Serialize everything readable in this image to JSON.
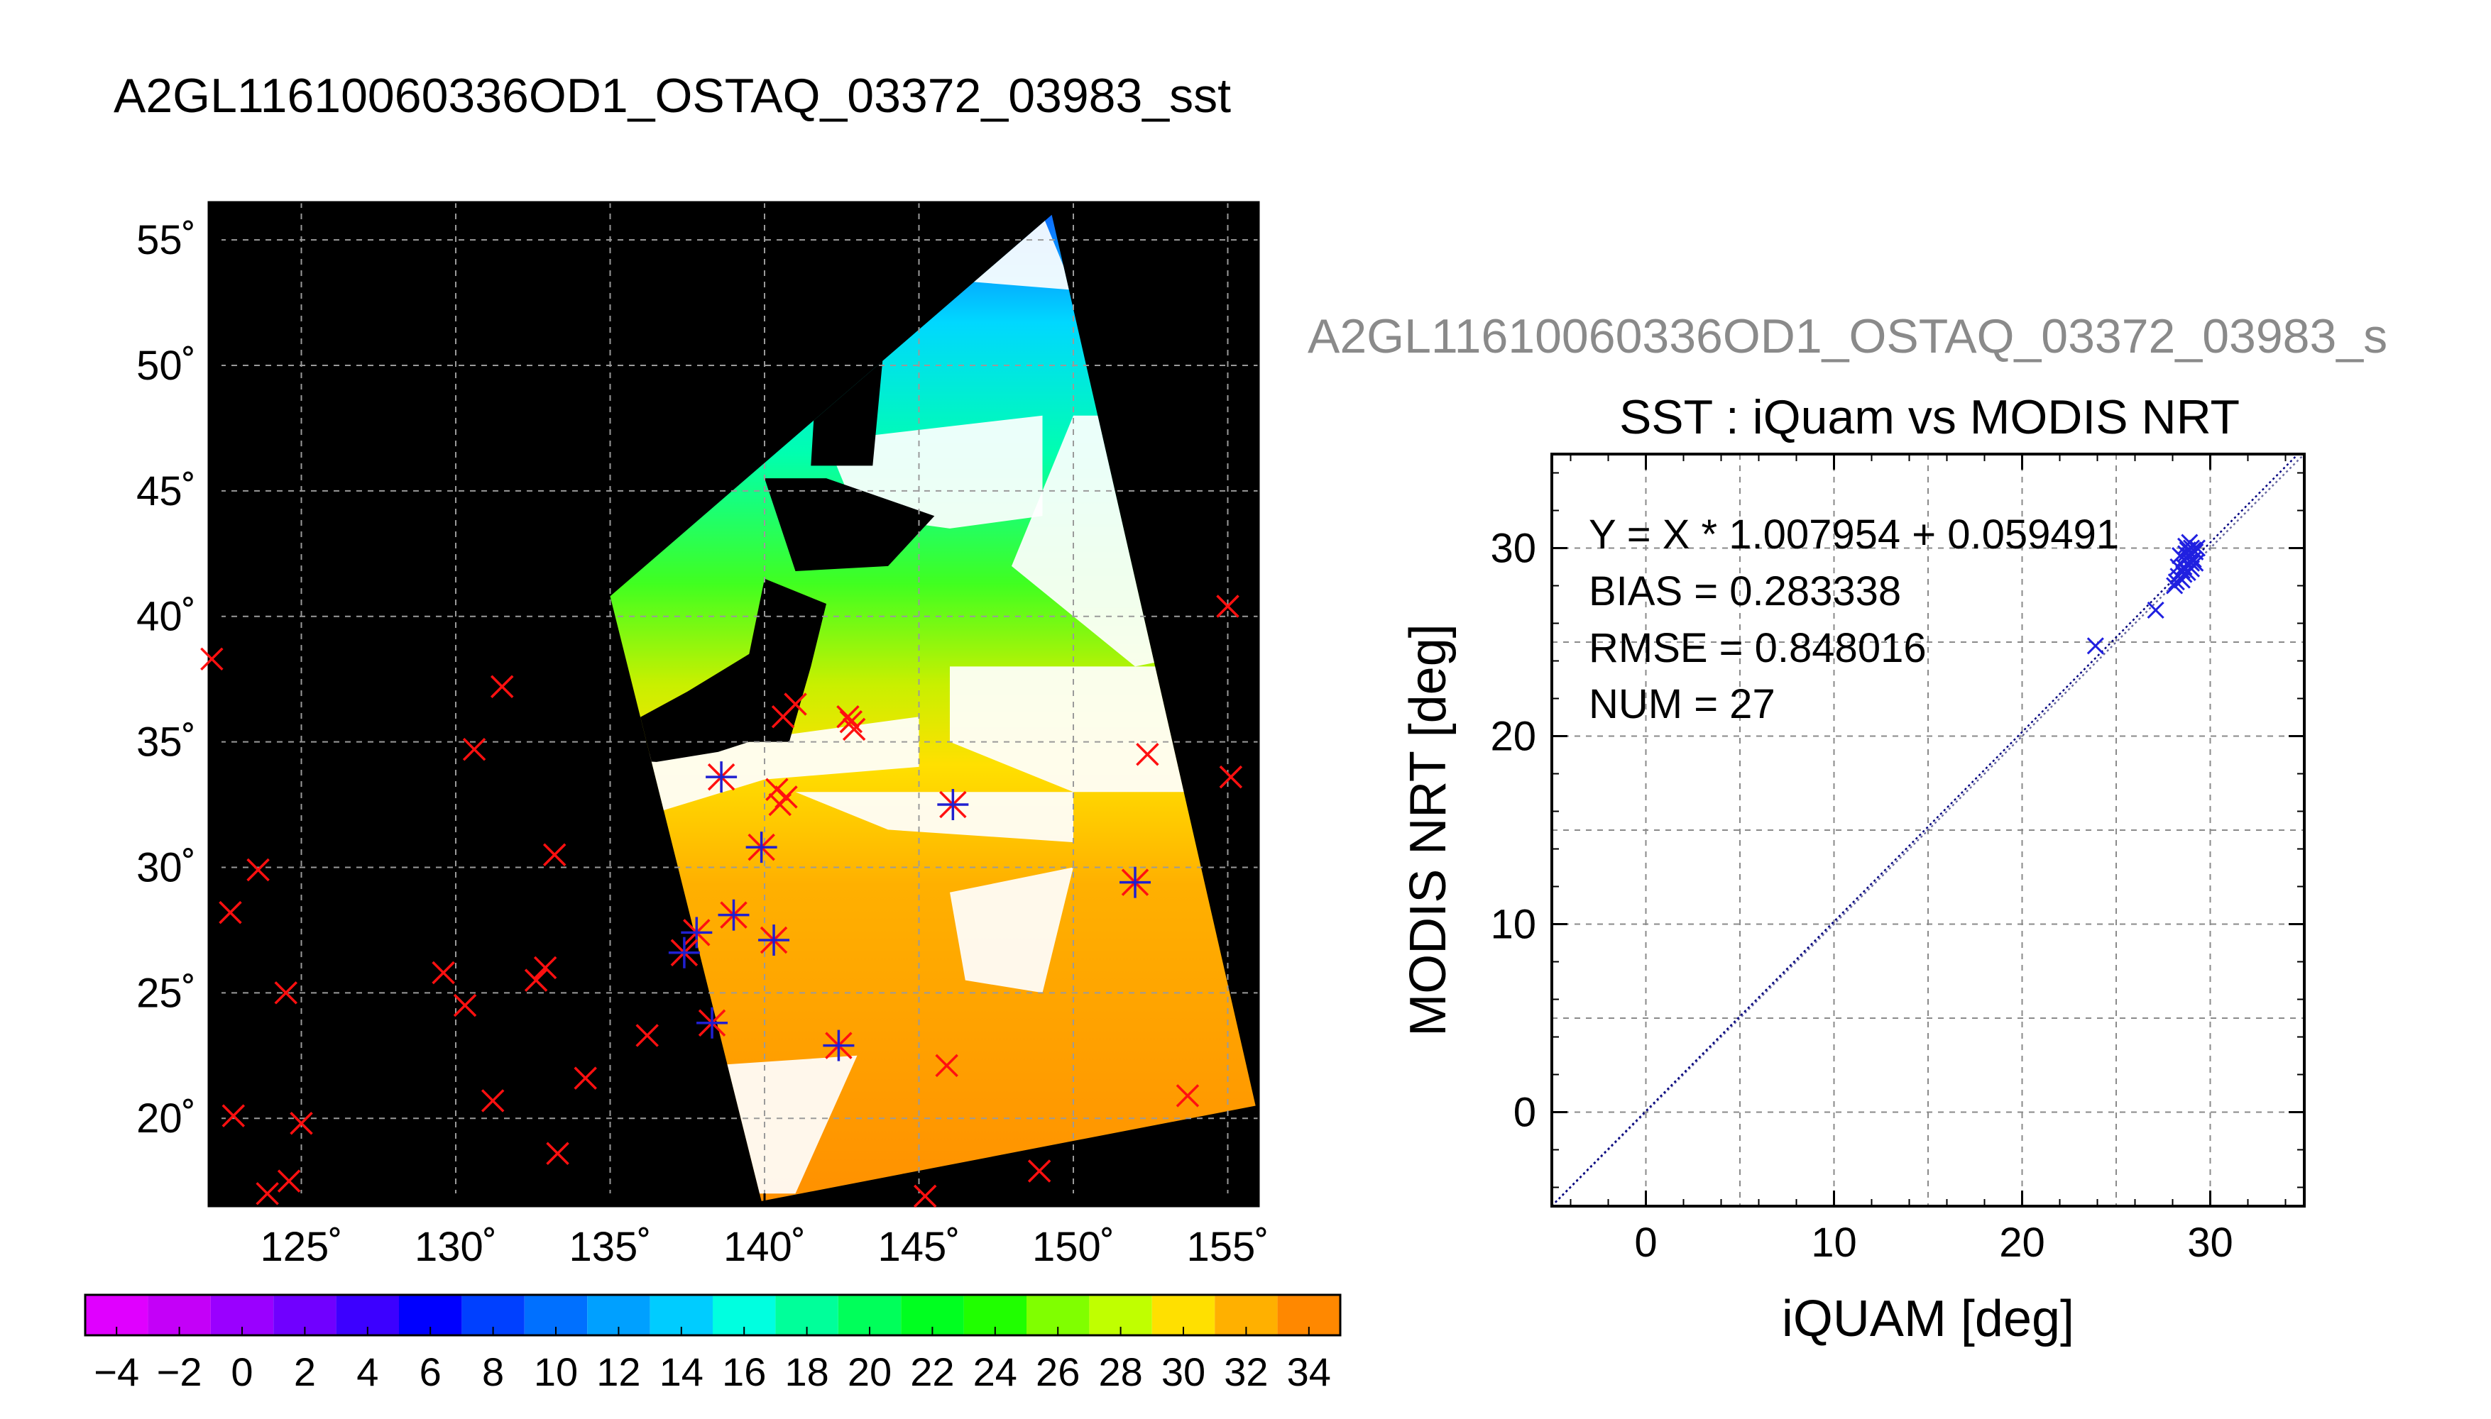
{
  "page_title": "A2GL11610060336OD1_OSTAQ_03372_03983_sst",
  "scatter_title_overlay": "A2GL11610060336OD1_OSTAQ_03372_03983_s",
  "chart_data": [
    {
      "type": "map",
      "lon_range": [
        122,
        156
      ],
      "lat_range": [
        16.5,
        56.5
      ],
      "lon_ticks": [
        125,
        130,
        135,
        140,
        145,
        150,
        155
      ],
      "lon_tick_labels": [
        "125˚",
        "130˚",
        "135˚",
        "140˚",
        "145˚",
        "150˚",
        "155˚"
      ],
      "lat_ticks": [
        20,
        25,
        30,
        35,
        40,
        45,
        50,
        55
      ],
      "lat_tick_labels": [
        "20˚",
        "25˚",
        "30˚",
        "35˚",
        "40˚",
        "45˚",
        "50˚",
        "55˚"
      ],
      "grid": true,
      "swath_corners": [
        [
          135.0,
          40.8
        ],
        [
          149.3,
          56.0
        ],
        [
          155.9,
          20.5
        ],
        [
          139.9,
          16.7
        ]
      ],
      "matched_points": [
        [
          138.6,
          33.6
        ],
        [
          139.9,
          30.8
        ],
        [
          146.1,
          32.5
        ],
        [
          152.0,
          29.4
        ],
        [
          137.8,
          27.4
        ],
        [
          139.0,
          28.1
        ],
        [
          137.4,
          26.6
        ],
        [
          140.3,
          27.1
        ],
        [
          138.3,
          23.8
        ],
        [
          142.4,
          22.9
        ]
      ],
      "unmatched_points": [
        [
          122.1,
          38.3
        ],
        [
          131.5,
          37.2
        ],
        [
          130.6,
          34.7
        ],
        [
          123.6,
          29.9
        ],
        [
          122.7,
          28.2
        ],
        [
          124.5,
          25.0
        ],
        [
          129.6,
          25.8
        ],
        [
          130.3,
          24.5
        ],
        [
          132.6,
          25.5
        ],
        [
          132.9,
          26.0
        ],
        [
          133.2,
          30.5
        ],
        [
          122.8,
          20.1
        ],
        [
          125.0,
          19.8
        ],
        [
          131.2,
          20.7
        ],
        [
          134.2,
          21.6
        ],
        [
          133.3,
          18.6
        ],
        [
          123.9,
          17.0
        ],
        [
          124.6,
          17.5
        ],
        [
          136.2,
          23.3
        ],
        [
          140.5,
          32.5
        ],
        [
          140.4,
          33.1
        ],
        [
          140.7,
          32.8
        ],
        [
          141.0,
          36.5
        ],
        [
          140.6,
          36.0
        ],
        [
          142.8,
          35.8
        ],
        [
          142.9,
          35.5
        ],
        [
          142.7,
          36.0
        ],
        [
          152.4,
          34.5
        ],
        [
          155.0,
          40.4
        ],
        [
          155.1,
          33.6
        ],
        [
          145.9,
          22.1
        ],
        [
          153.7,
          20.9
        ],
        [
          148.9,
          17.9
        ],
        [
          145.2,
          16.9
        ]
      ],
      "colorbar": {
        "min": -5,
        "max": 35,
        "step": 2,
        "tick_values": [
          -4,
          -2,
          0,
          2,
          4,
          6,
          8,
          10,
          12,
          14,
          16,
          18,
          20,
          22,
          24,
          26,
          28,
          30,
          32,
          34
        ],
        "tick_labels": [
          "−4",
          "−2",
          "0",
          "2",
          "4",
          "6",
          "8",
          "10",
          "12",
          "14",
          "16",
          "18",
          "20",
          "22",
          "24",
          "26",
          "28",
          "30",
          "32",
          "34"
        ],
        "colors": [
          "#e000ff",
          "#c400f8",
          "#9a00ff",
          "#7000ff",
          "#3c00ff",
          "#0000ff",
          "#0040ff",
          "#0070ff",
          "#00a0ff",
          "#00ccff",
          "#00ffe0",
          "#00ff9a",
          "#00ff5a",
          "#00ff20",
          "#20ff00",
          "#80ff00",
          "#c0ff00",
          "#ffe000",
          "#ffb000",
          "#ff8800",
          "#ff5000"
        ],
        "colors_note": "colorbar band fills"
      }
    },
    {
      "type": "scatter",
      "title": "SST : iQuam vs MODIS NRT",
      "xlabel": "iQUAM [deg]",
      "ylabel": "MODIS NRT [deg]",
      "xlim": [
        -5,
        35
      ],
      "ylim": [
        -5,
        35
      ],
      "ticks": [
        0,
        10,
        20,
        30
      ],
      "tick_labels": [
        "0",
        "10",
        "20",
        "30"
      ],
      "grid": true,
      "stats": [
        "Y = X * 1.007954 + 0.059491",
        "BIAS = 0.283338",
        "RMSE = 0.848016",
        "NUM = 27"
      ],
      "regression": {
        "slope": 1.007954,
        "intercept": 0.059491
      },
      "points": [
        [
          23.9,
          24.8
        ],
        [
          27.1,
          26.7
        ],
        [
          28.1,
          28.0
        ],
        [
          28.3,
          28.5
        ],
        [
          28.5,
          28.3
        ],
        [
          28.6,
          29.0
        ],
        [
          28.4,
          29.6
        ],
        [
          28.7,
          30.1
        ],
        [
          28.9,
          29.6
        ],
        [
          29.0,
          30.0
        ],
        [
          29.1,
          29.4
        ],
        [
          29.2,
          29.8
        ],
        [
          28.8,
          28.7
        ],
        [
          28.6,
          28.6
        ],
        [
          28.9,
          29.3
        ],
        [
          29.1,
          29.9
        ],
        [
          28.3,
          29.0
        ],
        [
          28.5,
          28.8
        ],
        [
          29.0,
          29.2
        ],
        [
          28.7,
          29.7
        ],
        [
          29.3,
          30.0
        ],
        [
          28.2,
          28.2
        ],
        [
          28.6,
          29.4
        ],
        [
          28.9,
          30.3
        ],
        [
          29.2,
          29.2
        ],
        [
          28.8,
          29.9
        ],
        [
          29.0,
          28.9
        ]
      ],
      "point_color": "#2020e0",
      "line_color": "#000080"
    }
  ]
}
